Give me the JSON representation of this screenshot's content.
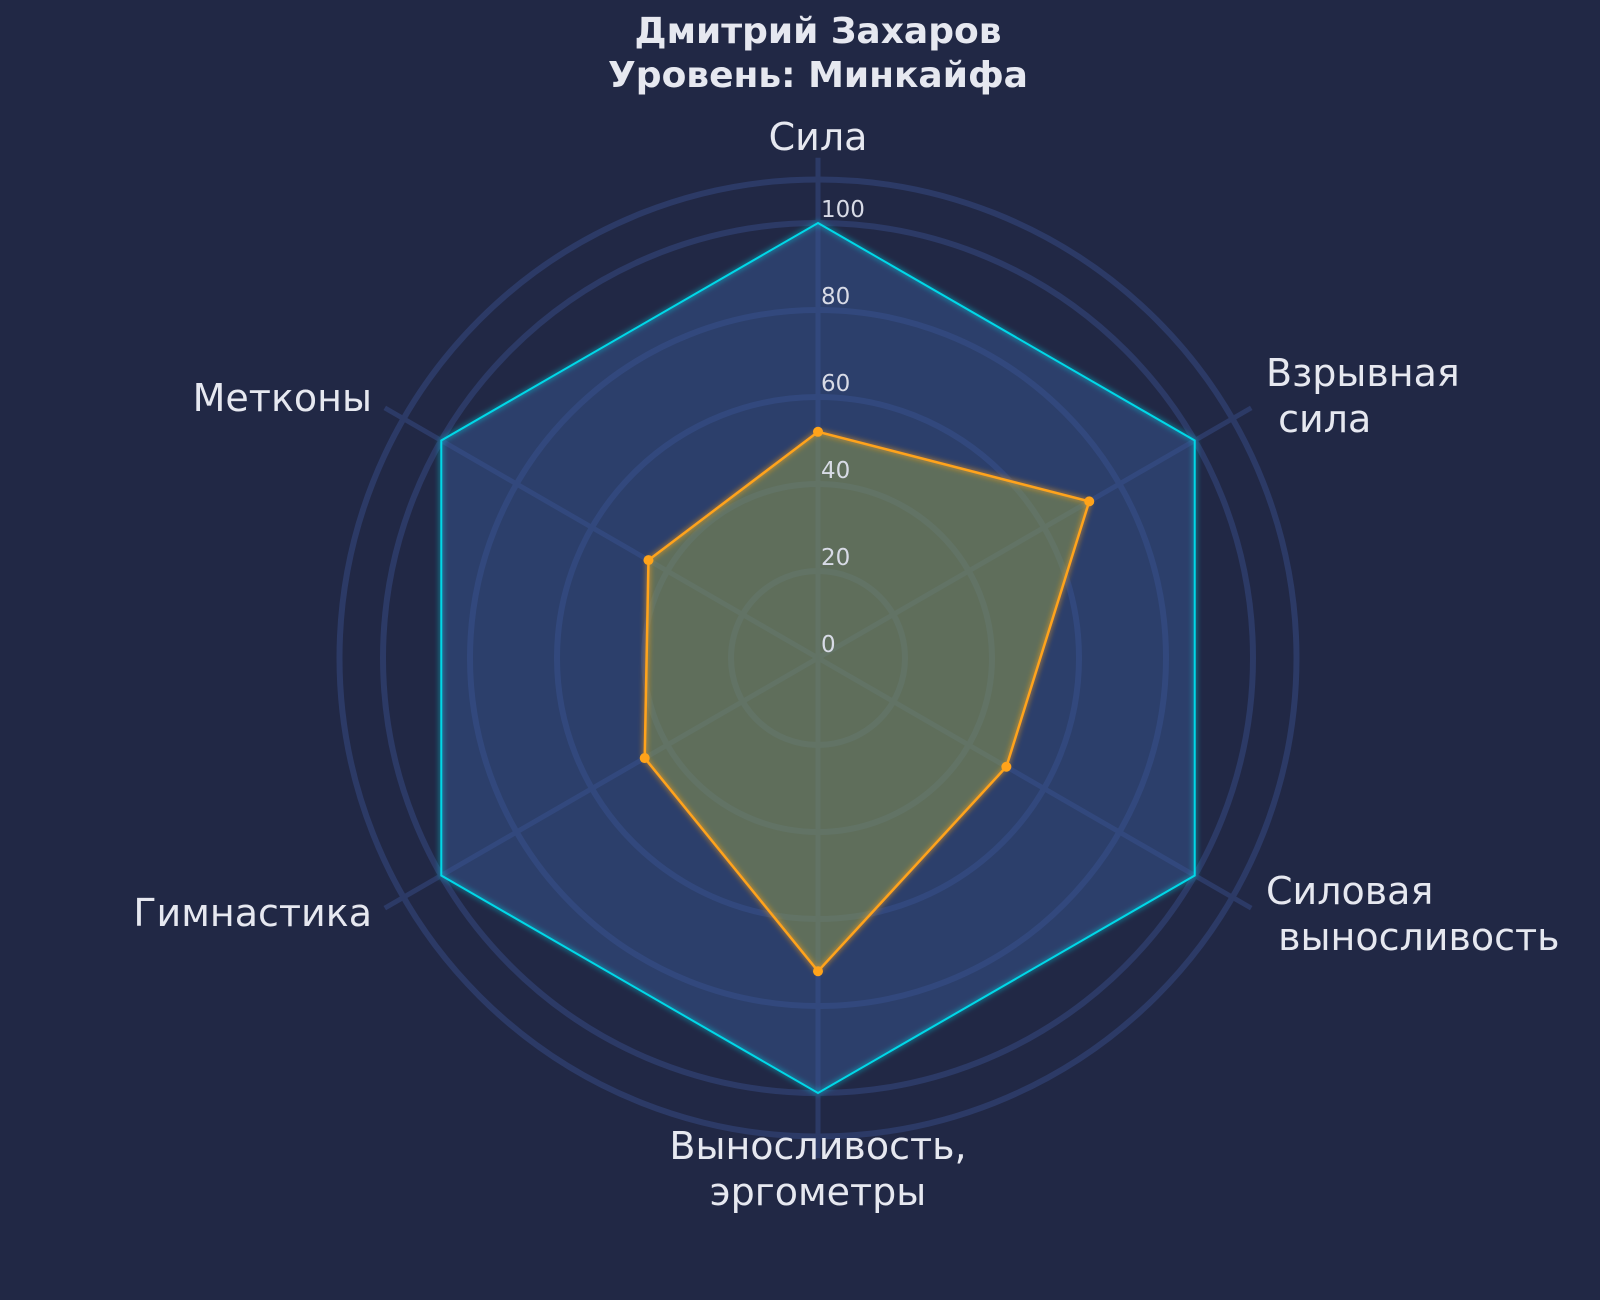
{
  "chart_data": {
    "type": "radar",
    "title": "Дмитрий Захаров",
    "subtitle": "Уровень: Минкайфа",
    "axes": [
      {
        "lines": [
          "Сила"
        ]
      },
      {
        "lines": [
          "Взрывная",
          " сила"
        ]
      },
      {
        "lines": [
          "Силовая",
          " выносливость"
        ]
      },
      {
        "lines": [
          "Выносливость,",
          "эргометры"
        ]
      },
      {
        "lines": [
          "Гимнастика"
        ]
      },
      {
        "lines": [
          "Метконы"
        ]
      }
    ],
    "categories": [
      "Сила",
      "Взрывная сила",
      "Силовая выносливость",
      "Выносливость, эргометры",
      "Гимнастика",
      "Метконы"
    ],
    "rlim": [
      0,
      100
    ],
    "ticks": [
      "0",
      "20",
      "40",
      "60",
      "80",
      "100"
    ],
    "tick_values": [
      0,
      20,
      40,
      60,
      80,
      100
    ],
    "grid_rings": [
      20,
      40,
      60,
      80,
      100
    ],
    "outer_ring": 110,
    "series": [
      {
        "values": [
          100,
          100,
          100,
          100,
          100,
          100
        ],
        "color": "#00d8e8",
        "fill": "#3a5a9a"
      },
      {
        "values": [
          52,
          72,
          50,
          72,
          46,
          45
        ],
        "color": "#ffa31a",
        "fill": "#9ea84a"
      }
    ],
    "colors": {
      "background": "#212845",
      "grid": "#2c3a66",
      "text": "#e6e8f0"
    }
  }
}
